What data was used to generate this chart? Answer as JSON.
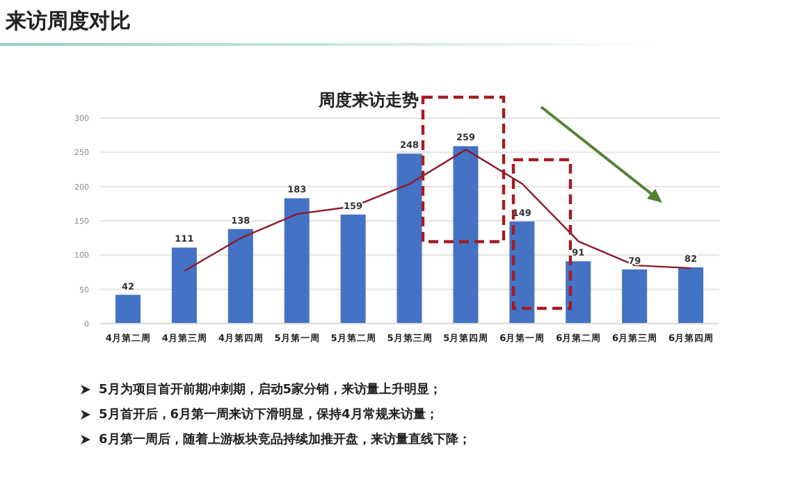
{
  "chart_data": {
    "type": "bar",
    "title": "周度来访走势",
    "subtitle": "来访周度对比",
    "categories": [
      "4月第二周",
      "4月第三周",
      "4月第四周",
      "5月第一周",
      "5月第二周",
      "5月第三周",
      "5月第四周",
      "6月第一周",
      "6月第二周",
      "6月第三周",
      "6月第四周"
    ],
    "series": [
      {
        "color": "#4472c4",
        "data_labels": true,
        "values": [
          42,
          111,
          138,
          183,
          159,
          248,
          259,
          149,
          91,
          79,
          82
        ]
      },
      {
        "type": "line",
        "color": "#8b1a2a",
        "marker": "none",
        "values": [
          null,
          77,
          125,
          160,
          171,
          204,
          254,
          204,
          120,
          85,
          81
        ]
      }
    ],
    "ylim": [
      0,
      300
    ],
    "yticks": [
      0,
      50,
      100,
      150,
      200,
      250,
      300
    ],
    "grid": "y",
    "legend": false,
    "annotations": [
      "5月为项目首开前期冲刺期，启动5家分销，来访量上升明显；",
      "5月首开后，6月第一周来访下滑明显，保持4月常规来访量；",
      "6月第一周后，随着上游板块竞品持续加推开盘，来访量直线下降；"
    ]
  }
}
